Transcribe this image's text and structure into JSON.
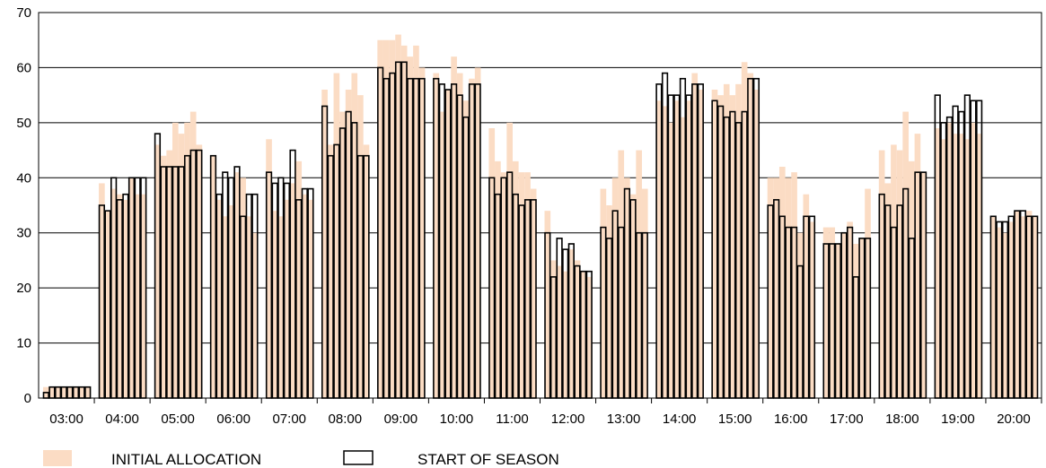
{
  "chart_data": {
    "type": "bar",
    "ylim": [
      0,
      70
    ],
    "yticks": [
      0,
      10,
      20,
      30,
      40,
      50,
      60,
      70
    ],
    "grid": true,
    "legend_position": "bottom-left",
    "colors": {
      "initial_allocation": "#fbdcc4",
      "start_of_season_edge": "#000000",
      "start_of_season_fill": "#ffffff",
      "grid": "#000000"
    },
    "categories": [
      "03:00",
      "04:00",
      "05:00",
      "06:00",
      "07:00",
      "08:00",
      "09:00",
      "10:00",
      "11:00",
      "12:00",
      "13:00",
      "14:00",
      "15:00",
      "16:00",
      "17:00",
      "18:00",
      "19:00",
      "20:00"
    ],
    "series": [
      {
        "name": "INITIAL ALLOCATION",
        "style": "filled",
        "values": [
          [
            2,
            2,
            2,
            2,
            2,
            2,
            2,
            2
          ],
          [
            39,
            34,
            38,
            37,
            36,
            40,
            37,
            37
          ],
          [
            46,
            44,
            45,
            50,
            48,
            50,
            52,
            46
          ],
          [
            44,
            36,
            33,
            35,
            41,
            40,
            33,
            30
          ],
          [
            47,
            34,
            33,
            36,
            39,
            43,
            37,
            36
          ],
          [
            56,
            46,
            59,
            52,
            56,
            59,
            55,
            46
          ],
          [
            65,
            65,
            65,
            66,
            64,
            62,
            64,
            60
          ],
          [
            59,
            52,
            56,
            62,
            59,
            54,
            58,
            60
          ],
          [
            49,
            43,
            41,
            50,
            43,
            41,
            41,
            38
          ],
          [
            34,
            25,
            24,
            23,
            27,
            25,
            23,
            22
          ],
          [
            38,
            35,
            40,
            45,
            40,
            37,
            45,
            38
          ],
          [
            54,
            53,
            50,
            54,
            51,
            54,
            59,
            56
          ],
          [
            56,
            55,
            57,
            55,
            57,
            61,
            59,
            56
          ],
          [
            40,
            40,
            42,
            40,
            41,
            30,
            37,
            32
          ],
          [
            31,
            31,
            28,
            30,
            32,
            28,
            29,
            38
          ],
          [
            45,
            39,
            46,
            45,
            52,
            43,
            48,
            41
          ],
          [
            49,
            47,
            50,
            48,
            48,
            47,
            50,
            48
          ],
          [
            33,
            31,
            30,
            32,
            34,
            33,
            34,
            33
          ]
        ]
      },
      {
        "name": "START OF SEASON",
        "style": "outline",
        "values": [
          [
            1,
            2,
            2,
            2,
            2,
            2,
            2,
            2
          ],
          [
            35,
            34,
            40,
            36,
            37,
            40,
            40,
            40
          ],
          [
            48,
            42,
            42,
            42,
            42,
            44,
            45,
            45
          ],
          [
            44,
            37,
            41,
            40,
            42,
            33,
            37,
            37
          ],
          [
            41,
            39,
            40,
            39,
            45,
            36,
            38,
            38
          ],
          [
            53,
            44,
            46,
            49,
            52,
            50,
            44,
            44
          ],
          [
            60,
            58,
            59,
            61,
            61,
            58,
            58,
            58
          ],
          [
            58,
            57,
            56,
            57,
            55,
            51,
            57,
            57
          ],
          [
            40,
            37,
            40,
            41,
            37,
            35,
            36,
            36
          ],
          [
            30,
            22,
            29,
            27,
            28,
            24,
            23,
            23
          ],
          [
            31,
            29,
            34,
            31,
            38,
            36,
            30,
            30
          ],
          [
            57,
            59,
            55,
            55,
            58,
            55,
            57,
            57
          ],
          [
            54,
            53,
            51,
            52,
            50,
            52,
            58,
            58
          ],
          [
            35,
            36,
            33,
            31,
            31,
            24,
            33,
            33
          ],
          [
            28,
            28,
            28,
            30,
            31,
            22,
            29,
            29
          ],
          [
            37,
            35,
            31,
            35,
            38,
            29,
            41,
            41
          ],
          [
            55,
            50,
            51,
            53,
            52,
            55,
            54,
            54
          ],
          [
            33,
            32,
            32,
            33,
            34,
            34,
            33,
            33
          ]
        ]
      }
    ]
  }
}
